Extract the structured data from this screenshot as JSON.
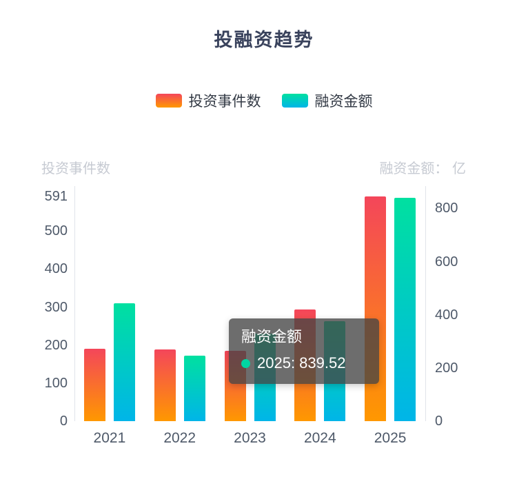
{
  "title": "投融资趋势",
  "legend": {
    "items": [
      {
        "label": "投资事件数"
      },
      {
        "label": "融资金额"
      }
    ]
  },
  "axes": {
    "left": {
      "name": "投资事件数",
      "max": 591,
      "ticks": [
        591,
        500,
        400,
        300,
        200,
        100,
        0
      ]
    },
    "right": {
      "name": "融资金额： 亿",
      "max": 845,
      "ticks": [
        800,
        600,
        400,
        200,
        0
      ]
    }
  },
  "chart_data": {
    "type": "bar",
    "title": "投融资趋势",
    "categories": [
      "2021",
      "2022",
      "2023",
      "2024",
      "2025"
    ],
    "series": [
      {
        "name": "投资事件数",
        "axis": "left",
        "values": [
          190,
          188,
          185,
          293,
          591
        ],
        "gradient": [
          "#f4465a",
          "#ff9800"
        ]
      },
      {
        "name": "融资金额",
        "axis": "right",
        "values": [
          443,
          245,
          330,
          376,
          839.52
        ],
        "gradient": [
          "#00e0a0",
          "#00b5e8"
        ]
      }
    ],
    "ylabel_left": "投资事件数",
    "ylabel_right": "融资金额： 亿",
    "ylim_left": [
      0,
      591
    ],
    "ylim_right": [
      0,
      845
    ],
    "legend_position": "top",
    "grid": false
  },
  "tooltip": {
    "title": "融资金额",
    "entry": "2025: 839.52",
    "dot_color": "#00d6a2"
  },
  "colors": {
    "title": "#39425c",
    "tick": "#4e5969",
    "axis_name": "#c6cad2",
    "axis_line": "#e0e3ea"
  }
}
